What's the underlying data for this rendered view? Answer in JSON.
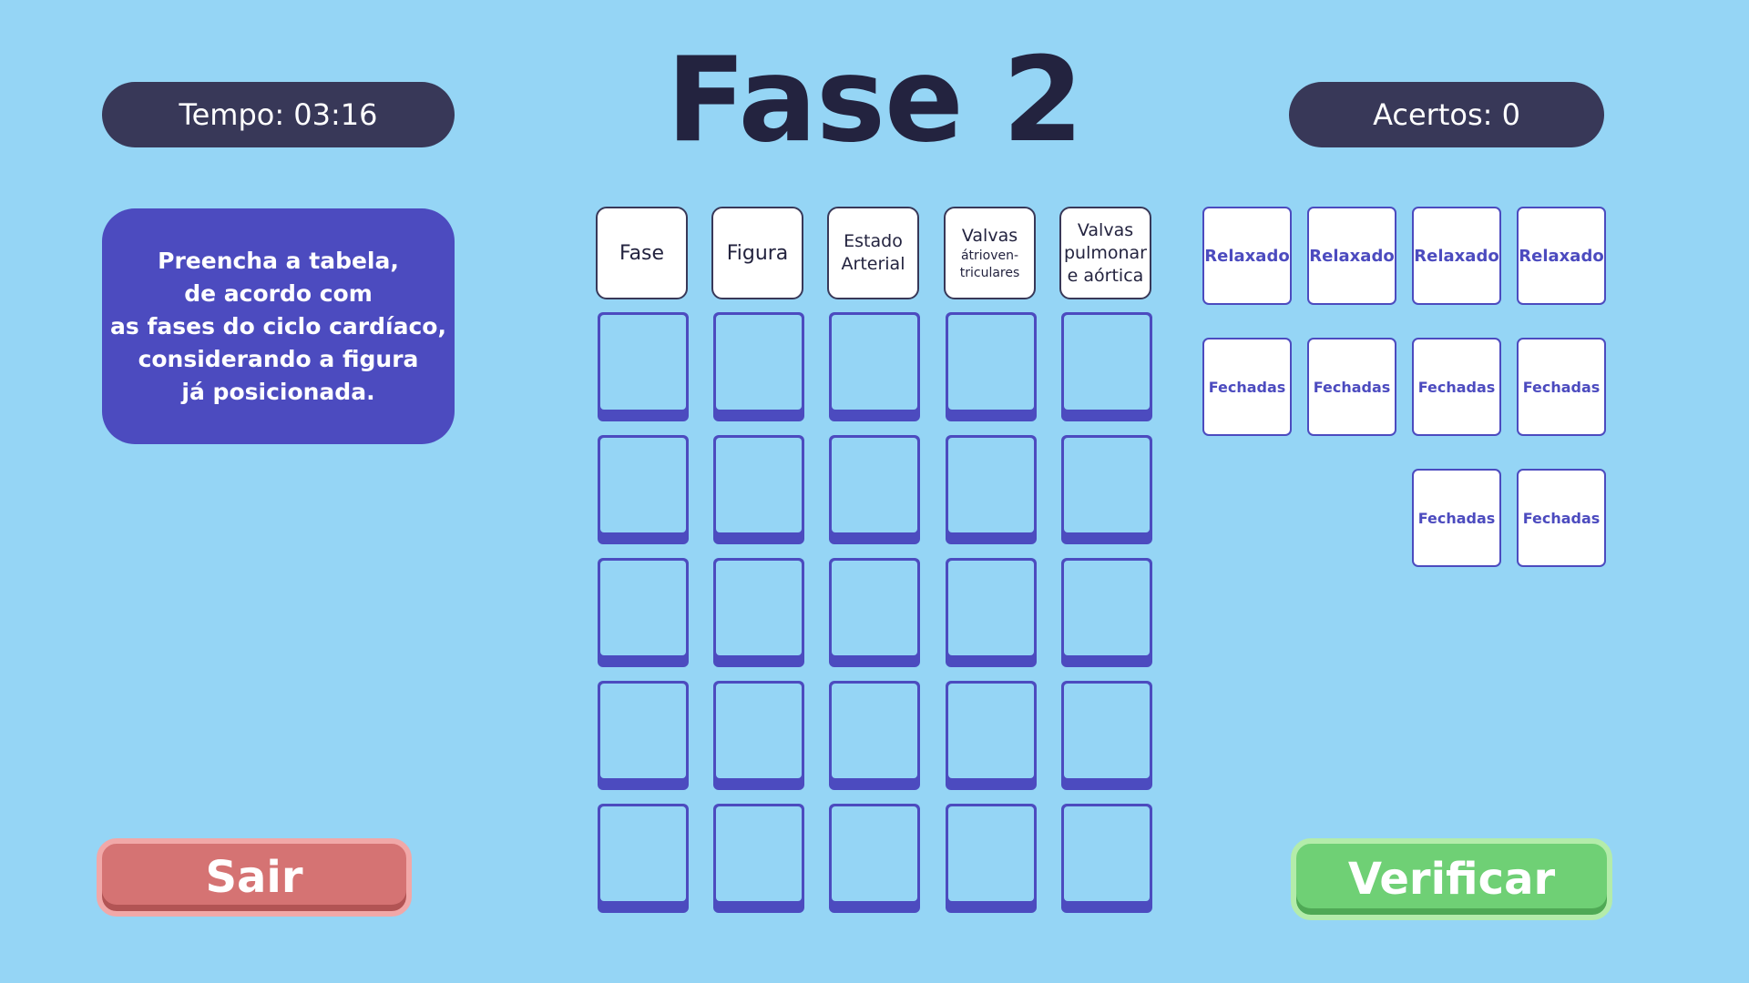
{
  "hud": {
    "timer": "Tempo: 03:16",
    "score": "Acertos: 0",
    "title": "Fase 2"
  },
  "instructions": {
    "lines": [
      "Preencha a tabela,",
      "de acordo com",
      "as fases do ciclo cardíaco,",
      "considerando a figura",
      "já posicionada."
    ]
  },
  "table": {
    "headers": [
      {
        "lines": [
          {
            "text": "Fase",
            "size": "big"
          }
        ]
      },
      {
        "lines": [
          {
            "text": "Figura",
            "size": "big"
          }
        ]
      },
      {
        "lines": [
          {
            "text": "Estado",
            "size": "normal"
          },
          {
            "text": "Arterial",
            "size": "normal"
          }
        ]
      },
      {
        "lines": [
          {
            "text": "Valvas",
            "size": "normal"
          },
          {
            "text": "átrioven-",
            "size": "small"
          },
          {
            "text": "triculares",
            "size": "small"
          }
        ]
      },
      {
        "lines": [
          {
            "text": "Valvas",
            "size": "normal"
          },
          {
            "text": "pulmonar",
            "size": "normal"
          },
          {
            "text": "e aórtica",
            "size": "normal"
          }
        ]
      }
    ],
    "rows": 5
  },
  "cards": [
    {
      "label": "Relaxado"
    },
    {
      "label": "Relaxado"
    },
    {
      "label": "Relaxado"
    },
    {
      "label": "Relaxado"
    },
    {
      "label": "Fechadas"
    },
    {
      "label": "Fechadas"
    },
    {
      "label": "Fechadas"
    },
    {
      "label": "Fechadas"
    },
    {
      "label": "Fechadas"
    },
    {
      "label": "Fechadas"
    }
  ],
  "buttons": {
    "exit": "Sair",
    "verify": "Verificar"
  },
  "colors": {
    "background": "#95d5f5",
    "primary": "#4c4bbf",
    "dark": "#383858",
    "exit": "#d57373",
    "verify": "#6fd075"
  }
}
